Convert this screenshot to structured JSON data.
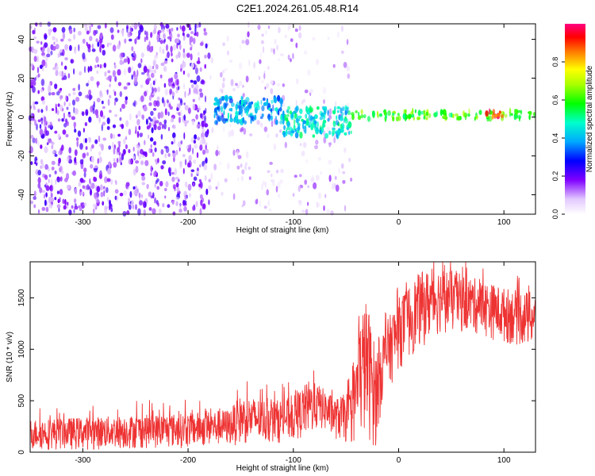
{
  "title": "C2E1.2024.261.05.48.R14",
  "chart_data": [
    {
      "type": "heatmap",
      "xlabel": "Height of straight line (km)",
      "ylabel": "Frequency (Hz)",
      "xlim": [
        -350,
        130
      ],
      "ylim": [
        -50,
        48
      ],
      "xticks": [
        -300,
        -200,
        -100,
        0,
        100
      ],
      "yticks": [
        -40,
        -20,
        0,
        20,
        40
      ],
      "colorbar": {
        "label": "Normalized spectral amplitude",
        "range": [
          0,
          1
        ],
        "ticks": [
          0.0,
          0.2,
          0.4,
          0.6,
          0.8
        ],
        "tick_labels": [
          "0.0",
          "0.2",
          "0.4",
          "0.6",
          "0.8"
        ],
        "colormap": [
          "#ffffff",
          "#d8b8ff",
          "#7f00ff",
          "#0000ff",
          "#00a0ff",
          "#00ffcc",
          "#00ff00",
          "#a0ff00",
          "#ffff00",
          "#ff8000",
          "#ff0000",
          "#ff0080"
        ]
      },
      "regions": [
        {
          "x": [
            -350,
            -180
          ],
          "freq": [
            -50,
            48
          ],
          "level": 0.15,
          "note_fill": "dense noise"
        },
        {
          "x": [
            -180,
            -45
          ],
          "freq": [
            -50,
            48
          ],
          "level": 0.06,
          "note_fill": "sparse noise"
        },
        {
          "x": [
            -175,
            -110
          ],
          "freq": [
            -3,
            10
          ],
          "level": 0.4
        },
        {
          "x": [
            -110,
            -45
          ],
          "freq": [
            -10,
            5
          ],
          "level": 0.45
        },
        {
          "x": [
            -45,
            130
          ],
          "freq": [
            -1,
            3
          ],
          "level": 0.6
        },
        {
          "x": [
            80,
            100
          ],
          "freq": [
            0,
            3
          ],
          "level": 0.9
        }
      ]
    },
    {
      "type": "line",
      "xlabel": "Height of straight line (km)",
      "ylabel": "SNR (10 * v/v)",
      "xlim": [
        -350,
        130
      ],
      "ylim": [
        0,
        1850
      ],
      "xticks": [
        -300,
        -200,
        -100,
        0,
        100
      ],
      "yticks": [
        0,
        500,
        1000,
        1500
      ],
      "color": "#ee3333",
      "envelope": {
        "x": [
          -350,
          -300,
          -250,
          -200,
          -180,
          -160,
          -150,
          -120,
          -100,
          -85,
          -75,
          -60,
          -45,
          -35,
          -30,
          -22,
          -15,
          0,
          20,
          40,
          70,
          100,
          130
        ],
        "low": [
          20,
          20,
          30,
          40,
          50,
          60,
          70,
          80,
          100,
          150,
          220,
          120,
          60,
          100,
          120,
          20,
          500,
          800,
          1000,
          1150,
          1150,
          1050,
          1000
        ],
        "high": [
          320,
          340,
          360,
          380,
          400,
          420,
          550,
          500,
          540,
          700,
          650,
          520,
          600,
          1400,
          1500,
          1000,
          1200,
          1500,
          1750,
          1800,
          1700,
          1600,
          1550
        ]
      }
    }
  ]
}
